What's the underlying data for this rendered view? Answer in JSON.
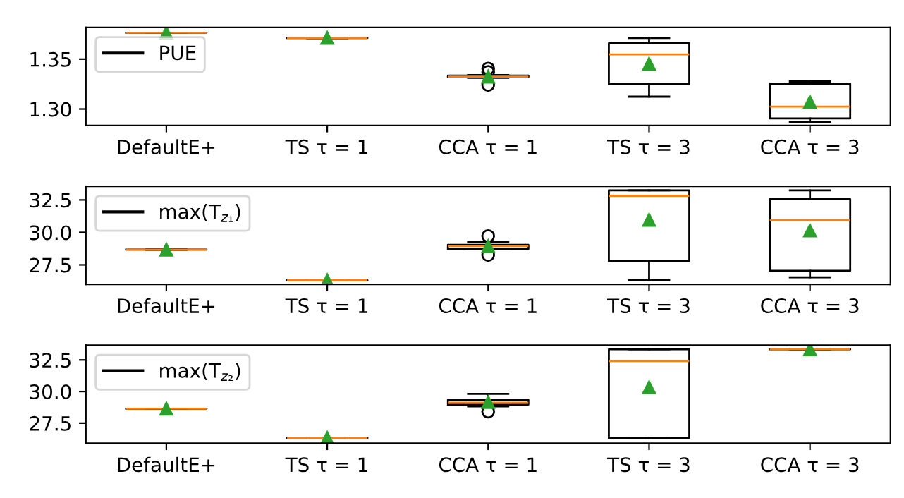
{
  "chart_data": [
    {
      "type": "box",
      "categories": [
        "DefaultE+",
        "TS τ = 1",
        "CCA τ = 1",
        "TS τ = 3",
        "CCA τ = 3"
      ],
      "ylim": [
        1.2835,
        1.3818
      ],
      "yticks": [
        {
          "value": 1.3,
          "label": "1.30"
        },
        {
          "value": 1.35,
          "label": "1.35"
        }
      ],
      "legend": "top left",
      "marker": "triangle",
      "grid": false,
      "series": [
        {
          "name": "PUE",
          "color": "#000000",
          "boxes": [
            {
              "low": 1.3765,
              "q1": 1.3765,
              "median": 1.3765,
              "q3": 1.3765,
              "high": 1.3765,
              "mean": 1.3765
            },
            {
              "low": 1.3712,
              "q1": 1.3712,
              "median": 1.3712,
              "q3": 1.3712,
              "high": 1.3712,
              "mean": 1.3712
            },
            {
              "low": 1.3312,
              "q1": 1.3318,
              "median": 1.3324,
              "q3": 1.3335,
              "high": 1.334,
              "mean": 1.3324,
              "outliers": [
                1.3406,
                1.3371,
                1.3241
              ]
            },
            {
              "low": 1.3124,
              "q1": 1.3253,
              "median": 1.3547,
              "q3": 1.3659,
              "high": 1.3712,
              "mean": 1.3453
            },
            {
              "low": 1.2871,
              "q1": 1.2906,
              "median": 1.3024,
              "q3": 1.3253,
              "high": 1.3276,
              "mean": 1.3071
            }
          ]
        }
      ]
    },
    {
      "type": "box",
      "categories": [
        "DefaultE+",
        "TS τ = 1",
        "CCA τ = 1",
        "TS τ = 3",
        "CCA τ = 3"
      ],
      "ylim": [
        26.0,
        33.55
      ],
      "yticks": [
        {
          "value": 27.5,
          "label": "27.5"
        },
        {
          "value": 30,
          "label": "30.0"
        },
        {
          "value": 32.5,
          "label": "32.5"
        }
      ],
      "legend": "top left",
      "marker": "triangle",
      "grid": false,
      "series": [
        {
          "name": "max(T$_{z₁}$)",
          "color": "#000000",
          "boxes": [
            {
              "low": 28.67,
              "q1": 28.67,
              "median": 28.67,
              "q3": 28.67,
              "high": 28.67,
              "mean": 28.67
            },
            {
              "low": 26.31,
              "q1": 26.31,
              "median": 26.31,
              "q3": 26.31,
              "high": 26.31,
              "mean": 26.31
            },
            {
              "low": 28.72,
              "q1": 28.72,
              "median": 28.94,
              "q3": 29.04,
              "high": 29.27,
              "mean": 28.94,
              "outliers": [
                29.72,
                28.26
              ]
            },
            {
              "low": 26.31,
              "q1": 27.8,
              "median": 32.82,
              "q3": 33.23,
              "high": 33.23,
              "mean": 30.96
            },
            {
              "low": 26.54,
              "q1": 27.04,
              "median": 30.94,
              "q3": 32.55,
              "high": 33.23,
              "mean": 30.14
            }
          ]
        }
      ]
    },
    {
      "type": "box",
      "categories": [
        "DefaultE+",
        "TS τ = 1",
        "CCA τ = 1",
        "TS τ = 3",
        "CCA τ = 3"
      ],
      "ylim": [
        25.91,
        33.67
      ],
      "yticks": [
        {
          "value": 27.5,
          "label": "27.5"
        },
        {
          "value": 30,
          "label": "30.0"
        },
        {
          "value": 32.5,
          "label": "32.5"
        }
      ],
      "legend": "top left",
      "marker": "triangle",
      "grid": false,
      "series": [
        {
          "name": "max(T$_{z₂}$)",
          "color": "#000000",
          "boxes": [
            {
              "low": 28.64,
              "q1": 28.64,
              "median": 28.64,
              "q3": 28.64,
              "high": 28.64,
              "mean": 28.64
            },
            {
              "low": 26.33,
              "q1": 26.33,
              "median": 26.33,
              "q3": 26.33,
              "high": 26.33,
              "mean": 26.33
            },
            {
              "low": 28.83,
              "q1": 28.97,
              "median": 29.11,
              "q3": 29.35,
              "high": 29.81,
              "mean": 29.16,
              "outliers": [
                28.41
              ]
            },
            {
              "low": 26.33,
              "q1": 26.33,
              "median": 32.41,
              "q3": 33.34,
              "high": 33.34,
              "mean": 30.33
            },
            {
              "low": 33.34,
              "q1": 33.34,
              "median": 33.34,
              "q3": 33.34,
              "high": 33.34,
              "mean": 33.34
            }
          ]
        }
      ]
    }
  ]
}
